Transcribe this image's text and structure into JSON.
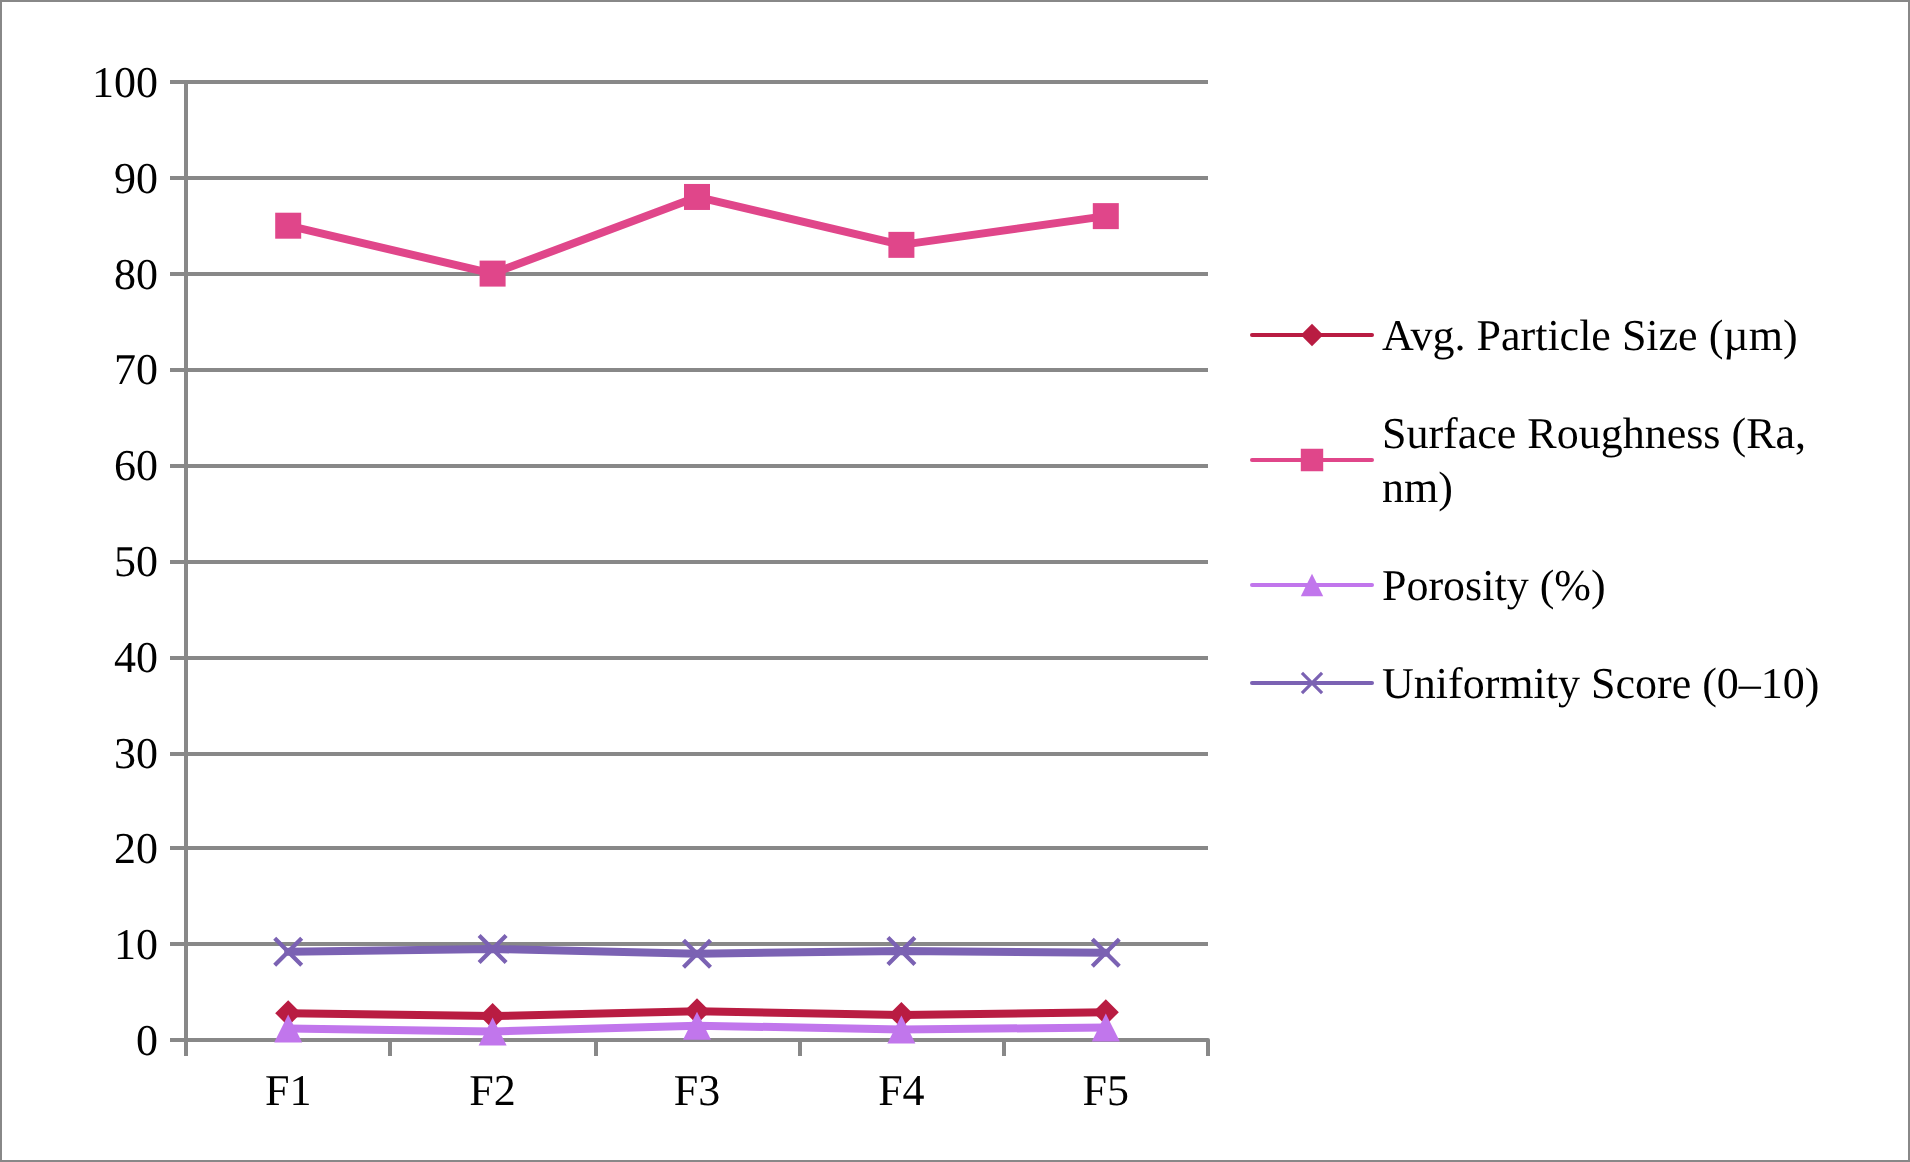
{
  "chart_data": {
    "type": "line",
    "categories": [
      "F1",
      "F2",
      "F3",
      "F4",
      "F5"
    ],
    "series": [
      {
        "name": "Avg. Particle Size (µm)",
        "color": "#b91c42",
        "values": [
          2.8,
          2.5,
          3.0,
          2.6,
          2.9
        ],
        "marker": "diamond"
      },
      {
        "name": "Surface Roughness (Ra, nm)",
        "color": "#e0468a",
        "values": [
          85,
          80,
          88,
          83,
          86
        ],
        "marker": "square"
      },
      {
        "name": "Porosity (%)",
        "color": "#c176ec",
        "values": [
          1.2,
          0.9,
          1.5,
          1.1,
          1.3
        ],
        "marker": "triangle"
      },
      {
        "name": "Uniformity Score (0–10)",
        "color": "#7b62b3",
        "values": [
          9.2,
          9.5,
          9.0,
          9.3,
          9.1
        ],
        "marker": "cross"
      }
    ],
    "ylim": [
      0,
      100
    ],
    "yticks": [
      0,
      10,
      20,
      30,
      40,
      50,
      60,
      70,
      80,
      90,
      100
    ],
    "grid": "y",
    "legend": "right",
    "line_style": "solid"
  }
}
